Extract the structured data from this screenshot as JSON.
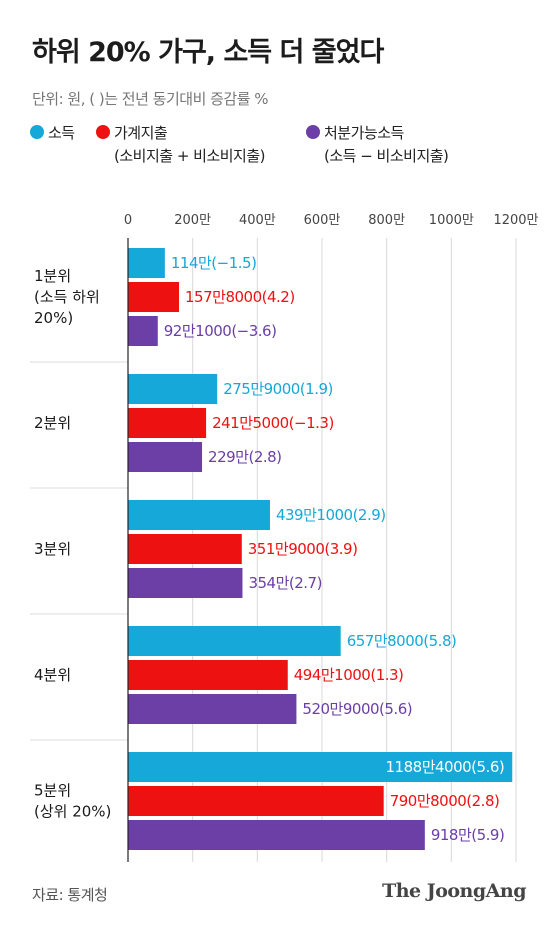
{
  "title": "하위 20% 가구, 소득 더 줄었다",
  "unit_note": "단위: 원, ( )는 전년 동기대비 증감률 %",
  "legend": [
    {
      "label": "소득",
      "sub": "",
      "color": "#16a8d8"
    },
    {
      "label": "가계지출",
      "sub": "(소비지출 + 비소비지출)",
      "color": "#ee1111"
    },
    {
      "label": "처분가능소득",
      "sub": "(소득 − 비소비지출)",
      "color": "#6b3fa6"
    }
  ],
  "source": "자료: 통계청",
  "brand": "The JoongAng",
  "chart_data": {
    "type": "bar",
    "orientation": "horizontal",
    "x_ticks": [
      "0",
      "200만",
      "400만",
      "600만",
      "800만",
      "1000만",
      "1200만"
    ],
    "xlim": [
      0,
      12000000
    ],
    "grid": true,
    "categories": [
      [
        "1분위",
        "(소득 하위",
        "20%)"
      ],
      [
        "2분위"
      ],
      [
        "3분위"
      ],
      [
        "4분위"
      ],
      [
        "5분위",
        "(상위 20%)"
      ]
    ],
    "series": [
      {
        "name": "소득",
        "color": "#16a8d8",
        "values": [
          1140000,
          2759000,
          4391000,
          6578000,
          11884000
        ],
        "labels": [
          "114만(−1.5)",
          "275만9000(1.9)",
          "439만1000(2.9)",
          "657만8000(5.8)",
          "1188만4000(5.6)"
        ]
      },
      {
        "name": "가계지출",
        "color": "#ee1111",
        "values": [
          1578000,
          2415000,
          3519000,
          4941000,
          7908000
        ],
        "labels": [
          "157만8000(4.2)",
          "241만5000(−1.3)",
          "351만9000(3.9)",
          "494만1000(1.3)",
          "790만8000(2.8)"
        ]
      },
      {
        "name": "처분가능소득",
        "color": "#6b3fa6",
        "values": [
          921000,
          2290000,
          3540000,
          5209000,
          9180000
        ],
        "labels": [
          "92만1000(−3.6)",
          "229만(2.8)",
          "354만(2.7)",
          "520만9000(5.6)",
          "918만(5.9)"
        ]
      }
    ]
  }
}
